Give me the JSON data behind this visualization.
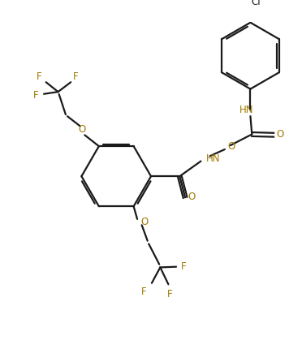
{
  "background_color": "#ffffff",
  "bond_color": "#1a1a1a",
  "heteroatom_color": "#a07800",
  "line_width": 1.6,
  "figsize": [
    3.72,
    4.31
  ],
  "dpi": 100,
  "xlim": [
    0,
    9.3
  ],
  "ylim": [
    0,
    10.8
  ]
}
